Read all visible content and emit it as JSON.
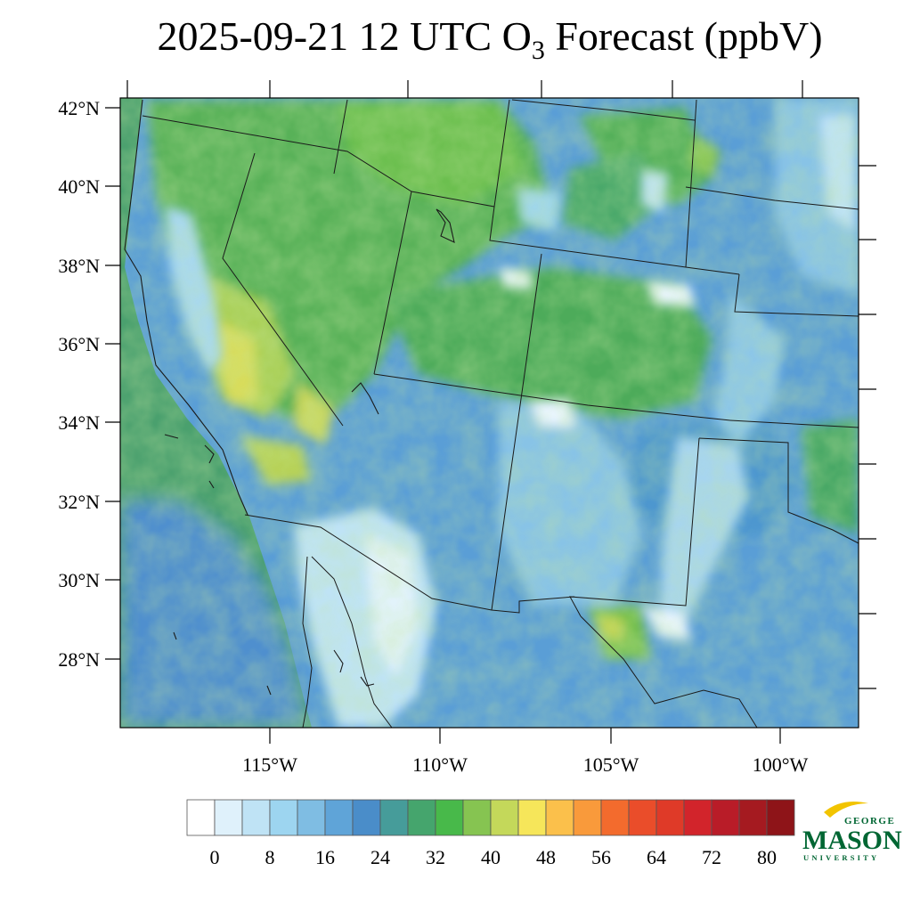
{
  "title": {
    "prefix": "2025-09-21 12 UTC O",
    "subscript": "3",
    "suffix": " Forecast (ppbV)"
  },
  "map": {
    "lat_labels": [
      "42°N",
      "40°N",
      "38°N",
      "36°N",
      "34°N",
      "32°N",
      "30°N",
      "28°N"
    ],
    "lon_labels": [
      "115°W",
      "110°W",
      "105°W",
      "100°W"
    ]
  },
  "colorbar": {
    "labels": [
      "0",
      "8",
      "16",
      "24",
      "32",
      "40",
      "48",
      "56",
      "64",
      "72",
      "80"
    ],
    "colors": [
      "#ffffff",
      "#dff1fb",
      "#bfe3f5",
      "#9dd5f0",
      "#7fbde3",
      "#5fa4d8",
      "#4a8dc9",
      "#469c9a",
      "#45a56d",
      "#48b94a",
      "#86c451",
      "#c4d85a",
      "#f6e65a",
      "#fbc04b",
      "#f99a3b",
      "#f36b2d",
      "#ea4d2a",
      "#df3a28",
      "#d2242b",
      "#b91c28",
      "#a51a20",
      "#8e1418"
    ]
  },
  "logo": {
    "line1": "GEORGE",
    "line2": "MASON",
    "line3": "UNIVERSITY"
  }
}
